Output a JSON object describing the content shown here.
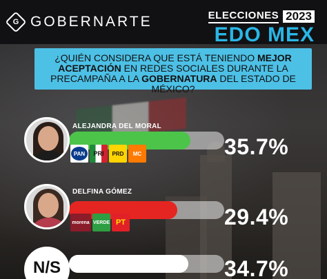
{
  "header": {
    "brand": "GOBERNARTE",
    "brand_mark": "G",
    "elections_label": "ELECCIONES",
    "year": "2023",
    "region": "EDO MEX"
  },
  "question": {
    "part1": "¿QUIÉN CONSIDERA QUE ESTÁ TENIENDO ",
    "bold1": "MEJOR ACEPTACIÓN",
    "part2": " EN REDES SOCIALES DURANTE LA PRECAMPAÑA A LA ",
    "bold2": "GOBERNATURA",
    "part3": " DEL ESTADO DE MÉXICO?"
  },
  "colors": {
    "accent": "#4dc0e6",
    "bar_moral": "#4cc44a",
    "bar_gomez": "#e52521",
    "bar_ns": "#ffffff"
  },
  "candidates": [
    {
      "name": "ALEJANDRA DEL MORAL",
      "value_label": "35.7%",
      "parties": [
        "PAN",
        "PRI",
        "PRD",
        "MC"
      ]
    },
    {
      "name": "DELFINA GÓMEZ",
      "value_label": "29.4%",
      "parties": [
        "morena",
        "VERDE",
        "PT"
      ]
    },
    {
      "name": "N/S",
      "value_label": "34.7%",
      "parties": []
    }
  ],
  "chart_data": {
    "type": "bar",
    "orientation": "horizontal",
    "categories": [
      "ALEJANDRA DEL MORAL",
      "DELFINA GÓMEZ",
      "N/S"
    ],
    "values": [
      35.7,
      29.4,
      34.7
    ],
    "unit": "%",
    "title": "¿QUIÉN CONSIDERA QUE ESTÁ TENIENDO MEJOR ACEPTACIÓN EN REDES SOCIALES DURANTE LA PRECAMPAÑA A LA GOBERNATURA DEL ESTADO DE MÉXICO?",
    "xlabel": "",
    "ylabel": "",
    "xlim": [
      0,
      100
    ],
    "grid": false,
    "legend": "none"
  }
}
